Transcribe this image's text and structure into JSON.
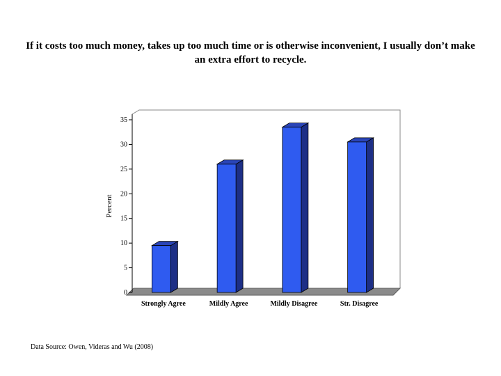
{
  "slide": {
    "title": "If it costs too much money, takes up too much time or is otherwise inconvenient, I usually don’t make an extra effort to recycle.",
    "source": "Data Source: Owen, Videras and Wu (2008)"
  },
  "chart_data": {
    "type": "bar",
    "categories": [
      "Strongly Agree",
      "Mildly Agree",
      "Mildly Disagree",
      "Str. Disagree"
    ],
    "values": [
      9.5,
      26,
      33.5,
      30.5
    ],
    "ylabel": "Percent",
    "xlabel": "",
    "ylim": [
      0,
      35
    ],
    "yticks": [
      0,
      5,
      10,
      15,
      20,
      25,
      30,
      35
    ],
    "grid": false,
    "legend": "none",
    "colors": {
      "bar_front": "#2f5bf0",
      "bar_side": "#1d2f86",
      "bar_top": "#2a45b8",
      "floor": "#8a8a8a",
      "floor_dark": "#5e5e5e",
      "frame": "#888888"
    }
  }
}
